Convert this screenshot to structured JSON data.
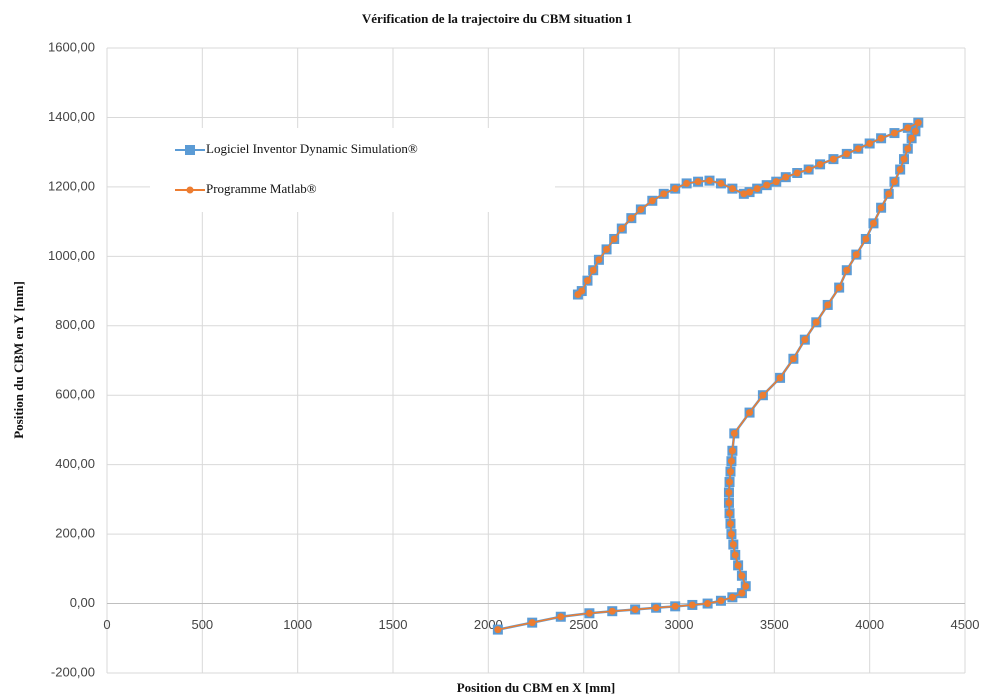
{
  "chart_data": {
    "type": "line",
    "title": "Vérification de la trajectoire du CBM situation 1",
    "xlabel": "Position du CBM en X [mm]",
    "ylabel": "Position du CBM en Y [mm]",
    "x": [
      2050,
      2230,
      2380,
      2530,
      2650,
      2770,
      2880,
      2980,
      3070,
      3150,
      3220,
      3280,
      3330,
      3350,
      3330,
      3310,
      3295,
      3285,
      3275,
      3270,
      3265,
      3262,
      3262,
      3265,
      3270,
      3275,
      3280,
      3290,
      3370,
      3440,
      3530,
      3600,
      3660,
      3720,
      3780,
      3840,
      3880,
      3930,
      3980,
      4020,
      4060,
      4100,
      4130,
      4160,
      4180,
      4200,
      4220,
      4240,
      4255,
      4200,
      4130,
      4060,
      4000,
      3940,
      3880,
      3810,
      3740,
      3680,
      3620,
      3560,
      3510,
      3460,
      3410,
      3370,
      3340,
      3280,
      3220,
      3160,
      3100,
      3040,
      2980,
      2920,
      2860,
      2800,
      2750,
      2700,
      2660,
      2620,
      2580,
      2550,
      2520,
      2490,
      2470
    ],
    "series": [
      {
        "name": "Logiciel Inventor Dynamic Simulation®",
        "color": "#5b9bd5",
        "marker": "square",
        "values": [
          -75,
          -55,
          -38,
          -28,
          -22,
          -17,
          -12,
          -8,
          -4,
          0,
          8,
          18,
          30,
          50,
          80,
          110,
          140,
          170,
          200,
          230,
          260,
          290,
          320,
          350,
          380,
          410,
          440,
          490,
          550,
          600,
          650,
          705,
          760,
          810,
          860,
          910,
          960,
          1005,
          1050,
          1095,
          1140,
          1180,
          1215,
          1250,
          1280,
          1310,
          1340,
          1360,
          1385,
          1370,
          1355,
          1340,
          1325,
          1310,
          1295,
          1280,
          1265,
          1250,
          1240,
          1228,
          1215,
          1205,
          1195,
          1185,
          1180,
          1195,
          1210,
          1218,
          1215,
          1210,
          1195,
          1180,
          1160,
          1135,
          1110,
          1080,
          1050,
          1020,
          990,
          960,
          930,
          900,
          890
        ]
      },
      {
        "name": "Programme Matlab®",
        "color": "#ed7d31",
        "marker": "circle",
        "values": [
          -75,
          -55,
          -38,
          -28,
          -22,
          -17,
          -12,
          -8,
          -4,
          0,
          8,
          18,
          30,
          50,
          80,
          110,
          140,
          170,
          200,
          230,
          260,
          290,
          320,
          350,
          380,
          410,
          440,
          490,
          550,
          600,
          650,
          705,
          760,
          810,
          860,
          910,
          960,
          1005,
          1050,
          1095,
          1140,
          1180,
          1215,
          1250,
          1280,
          1310,
          1340,
          1360,
          1385,
          1370,
          1355,
          1340,
          1325,
          1310,
          1295,
          1280,
          1265,
          1250,
          1240,
          1228,
          1215,
          1205,
          1195,
          1185,
          1180,
          1195,
          1210,
          1218,
          1215,
          1210,
          1195,
          1180,
          1160,
          1135,
          1110,
          1080,
          1050,
          1020,
          990,
          960,
          930,
          900,
          890
        ]
      }
    ],
    "xlim": [
      0,
      4500
    ],
    "xticks": [
      0,
      500,
      1000,
      1500,
      2000,
      2500,
      3000,
      3500,
      4000,
      4500
    ],
    "ylim": [
      -200,
      1600
    ],
    "yticks": [
      {
        "value": -200,
        "label": "-200,00"
      },
      {
        "value": 0,
        "label": "0,00"
      },
      {
        "value": 200,
        "label": "200,00"
      },
      {
        "value": 400,
        "label": "400,00"
      },
      {
        "value": 600,
        "label": "600,00"
      },
      {
        "value": 800,
        "label": "800,00"
      },
      {
        "value": 1000,
        "label": "1000,00"
      },
      {
        "value": 1200,
        "label": "1200,00"
      },
      {
        "value": 1400,
        "label": "1400,00"
      },
      {
        "value": 1600,
        "label": "1600,00"
      }
    ],
    "grid": true,
    "legend": "upper left"
  }
}
